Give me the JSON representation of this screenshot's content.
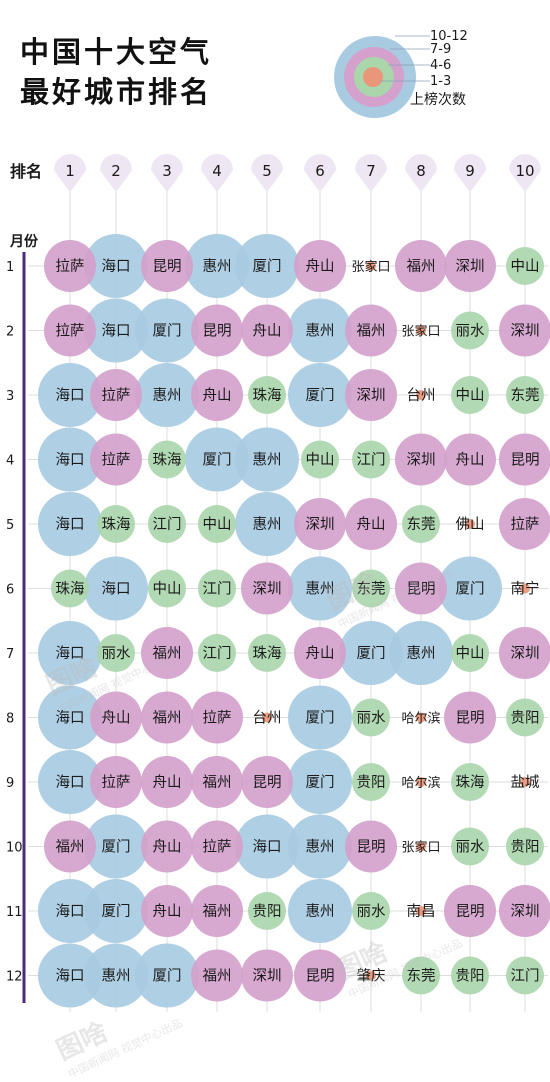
{
  "title_lines": [
    "中国十大空气",
    "最好城市排名"
  ],
  "legend": {
    "levels": [
      "10-12",
      "7-9",
      "4-6",
      "1-3"
    ],
    "caption": "上榜次数",
    "colors": [
      "#a8cbe2",
      "#d4a1cc",
      "#aad6ac",
      "#e9967a"
    ]
  },
  "rank_label": "排名",
  "month_label": "月份",
  "ranks": [
    "1",
    "2",
    "3",
    "4",
    "5",
    "6",
    "7",
    "8",
    "9",
    "10"
  ],
  "months": [
    "1",
    "2",
    "3",
    "4",
    "5",
    "6",
    "7",
    "8",
    "9",
    "10",
    "11",
    "12"
  ],
  "colors": {
    "grid": "#dddddd",
    "axis": "#4b2a7a",
    "pin": "#efe6f4",
    "rank_text": "#5a3a1a"
  },
  "grid_data": [
    [
      [
        "拉萨",
        2
      ],
      [
        "海口",
        3
      ],
      [
        "昆明",
        2
      ],
      [
        "惠州",
        3
      ],
      [
        "厦门",
        3
      ],
      [
        "舟山",
        2
      ],
      [
        "张家口",
        0
      ],
      [
        "福州",
        2
      ],
      [
        "深圳",
        2
      ],
      [
        "中山",
        1
      ]
    ],
    [
      [
        "拉萨",
        2
      ],
      [
        "海口",
        3
      ],
      [
        "厦门",
        3
      ],
      [
        "昆明",
        2
      ],
      [
        "舟山",
        2
      ],
      [
        "惠州",
        3
      ],
      [
        "福州",
        2
      ],
      [
        "张家口",
        0
      ],
      [
        "丽水",
        1
      ],
      [
        "深圳",
        2
      ]
    ],
    [
      [
        "海口",
        3
      ],
      [
        "拉萨",
        2
      ],
      [
        "惠州",
        3
      ],
      [
        "舟山",
        2
      ],
      [
        "珠海",
        1
      ],
      [
        "厦门",
        3
      ],
      [
        "深圳",
        2
      ],
      [
        "台州",
        0
      ],
      [
        "中山",
        1
      ],
      [
        "东莞",
        1
      ]
    ],
    [
      [
        "海口",
        3
      ],
      [
        "拉萨",
        2
      ],
      [
        "珠海",
        1
      ],
      [
        "厦门",
        3
      ],
      [
        "惠州",
        3
      ],
      [
        "中山",
        1
      ],
      [
        "江门",
        1
      ],
      [
        "深圳",
        2
      ],
      [
        "舟山",
        2
      ],
      [
        "昆明",
        2
      ]
    ],
    [
      [
        "海口",
        3
      ],
      [
        "珠海",
        1
      ],
      [
        "江门",
        1
      ],
      [
        "中山",
        1
      ],
      [
        "惠州",
        3
      ],
      [
        "深圳",
        2
      ],
      [
        "舟山",
        2
      ],
      [
        "东莞",
        1
      ],
      [
        "佛山",
        0
      ],
      [
        "拉萨",
        2
      ]
    ],
    [
      [
        "珠海",
        1
      ],
      [
        "海口",
        3
      ],
      [
        "中山",
        1
      ],
      [
        "江门",
        1
      ],
      [
        "深圳",
        2
      ],
      [
        "惠州",
        3
      ],
      [
        "东莞",
        1
      ],
      [
        "昆明",
        2
      ],
      [
        "厦门",
        3
      ],
      [
        "南宁",
        0
      ]
    ],
    [
      [
        "海口",
        3
      ],
      [
        "丽水",
        1
      ],
      [
        "福州",
        2
      ],
      [
        "江门",
        1
      ],
      [
        "珠海",
        1
      ],
      [
        "舟山",
        2
      ],
      [
        "厦门",
        3
      ],
      [
        "惠州",
        3
      ],
      [
        "中山",
        1
      ],
      [
        "深圳",
        2
      ]
    ],
    [
      [
        "海口",
        3
      ],
      [
        "舟山",
        2
      ],
      [
        "福州",
        2
      ],
      [
        "拉萨",
        2
      ],
      [
        "台州",
        0
      ],
      [
        "厦门",
        3
      ],
      [
        "丽水",
        1
      ],
      [
        "哈尔滨",
        0
      ],
      [
        "昆明",
        2
      ],
      [
        "贵阳",
        1
      ]
    ],
    [
      [
        "海口",
        3
      ],
      [
        "拉萨",
        2
      ],
      [
        "舟山",
        2
      ],
      [
        "福州",
        2
      ],
      [
        "昆明",
        2
      ],
      [
        "厦门",
        3
      ],
      [
        "贵阳",
        1
      ],
      [
        "哈尔滨",
        0
      ],
      [
        "珠海",
        1
      ],
      [
        "盐城",
        0
      ]
    ],
    [
      [
        "福州",
        2
      ],
      [
        "厦门",
        3
      ],
      [
        "舟山",
        2
      ],
      [
        "拉萨",
        2
      ],
      [
        "海口",
        3
      ],
      [
        "惠州",
        3
      ],
      [
        "昆明",
        2
      ],
      [
        "张家口",
        0
      ],
      [
        "丽水",
        1
      ],
      [
        "贵阳",
        1
      ]
    ],
    [
      [
        "海口",
        3
      ],
      [
        "厦门",
        3
      ],
      [
        "舟山",
        2
      ],
      [
        "福州",
        2
      ],
      [
        "贵阳",
        1
      ],
      [
        "惠州",
        3
      ],
      [
        "丽水",
        1
      ],
      [
        "南昌",
        0
      ],
      [
        "昆明",
        2
      ],
      [
        "深圳",
        2
      ]
    ],
    [
      [
        "海口",
        3
      ],
      [
        "惠州",
        3
      ],
      [
        "厦门",
        3
      ],
      [
        "福州",
        2
      ],
      [
        "深圳",
        2
      ],
      [
        "昆明",
        2
      ],
      [
        "肇庆",
        0
      ],
      [
        "东莞",
        1
      ],
      [
        "贵阳",
        1
      ],
      [
        "江门",
        1
      ]
    ]
  ],
  "watermark": {
    "logo": "图啥",
    "sub": "中国新闻网 视觉中心出品"
  }
}
